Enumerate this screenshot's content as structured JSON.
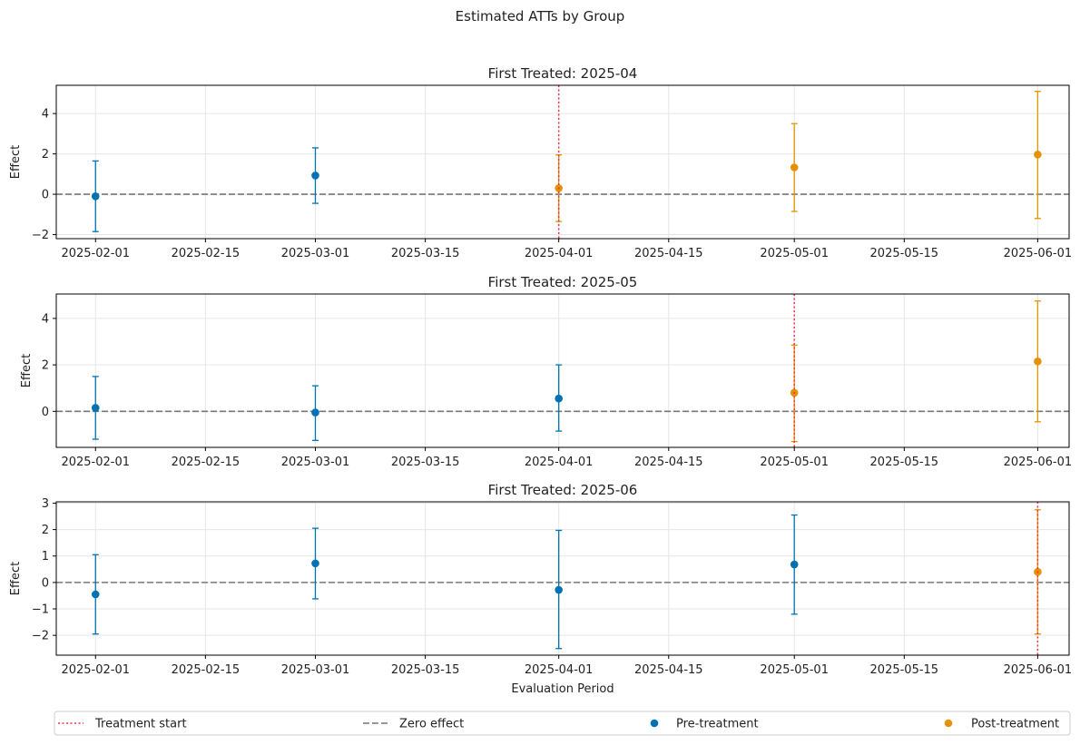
{
  "figure_title": "Estimated ATTs by Group",
  "colors": {
    "pre": "#0072b2",
    "post": "#e69100",
    "treatment_line": "#e8334b",
    "zero_line": "#777777",
    "grid": "#e6e6e6"
  },
  "legend": {
    "treatment_start": "Treatment start",
    "zero_effect": "Zero effect",
    "pre_treatment": "Pre-treatment",
    "post_treatment": "Post-treatment"
  },
  "chart_data": [
    {
      "type": "scatter",
      "title": "First Treated: 2025-04",
      "xlabel": "",
      "ylabel": "Effect",
      "xlim": [
        "2025-01-27",
        "2025-06-05"
      ],
      "ylim": [
        -2.2,
        5.4
      ],
      "yticks": [
        -2,
        0,
        2,
        4
      ],
      "treatment_start": "2025-04-01",
      "points": [
        {
          "x": "2025-02-01",
          "y": -0.1,
          "lo": -1.85,
          "hi": 1.65,
          "phase": "pre"
        },
        {
          "x": "2025-03-01",
          "y": 0.93,
          "lo": -0.45,
          "hi": 2.3,
          "phase": "pre"
        },
        {
          "x": "2025-04-01",
          "y": 0.3,
          "lo": -1.35,
          "hi": 1.95,
          "phase": "post"
        },
        {
          "x": "2025-05-01",
          "y": 1.33,
          "lo": -0.85,
          "hi": 3.5,
          "phase": "post"
        },
        {
          "x": "2025-06-01",
          "y": 1.97,
          "lo": -1.2,
          "hi": 5.1,
          "phase": "post"
        }
      ]
    },
    {
      "type": "scatter",
      "title": "First Treated: 2025-05",
      "xlabel": "",
      "ylabel": "Effect",
      "xlim": [
        "2025-01-27",
        "2025-06-05"
      ],
      "ylim": [
        -1.55,
        5.05
      ],
      "yticks": [
        0,
        2,
        4
      ],
      "treatment_start": "2025-05-01",
      "points": [
        {
          "x": "2025-02-01",
          "y": 0.15,
          "lo": -1.2,
          "hi": 1.5,
          "phase": "pre"
        },
        {
          "x": "2025-03-01",
          "y": -0.05,
          "lo": -1.25,
          "hi": 1.1,
          "phase": "pre"
        },
        {
          "x": "2025-04-01",
          "y": 0.55,
          "lo": -0.85,
          "hi": 2.0,
          "phase": "pre"
        },
        {
          "x": "2025-05-01",
          "y": 0.8,
          "lo": -1.3,
          "hi": 2.85,
          "phase": "post"
        },
        {
          "x": "2025-06-01",
          "y": 2.15,
          "lo": -0.45,
          "hi": 4.75,
          "phase": "post"
        }
      ]
    },
    {
      "type": "scatter",
      "title": "First Treated: 2025-06",
      "xlabel": "Evaluation Period",
      "ylabel": "Effect",
      "xlim": [
        "2025-01-27",
        "2025-06-05"
      ],
      "ylim": [
        -2.75,
        3.05
      ],
      "yticks": [
        -2,
        -1,
        0,
        1,
        2,
        3
      ],
      "treatment_start": "2025-06-01",
      "points": [
        {
          "x": "2025-02-01",
          "y": -0.45,
          "lo": -1.95,
          "hi": 1.05,
          "phase": "pre"
        },
        {
          "x": "2025-03-01",
          "y": 0.72,
          "lo": -0.62,
          "hi": 2.05,
          "phase": "pre"
        },
        {
          "x": "2025-04-01",
          "y": -0.28,
          "lo": -2.5,
          "hi": 1.97,
          "phase": "pre"
        },
        {
          "x": "2025-05-01",
          "y": 0.68,
          "lo": -1.2,
          "hi": 2.55,
          "phase": "pre"
        },
        {
          "x": "2025-06-01",
          "y": 0.4,
          "lo": -1.95,
          "hi": 2.75,
          "phase": "post"
        }
      ]
    }
  ],
  "x_ticks": [
    "2025-02-01",
    "2025-02-15",
    "2025-03-01",
    "2025-03-15",
    "2025-04-01",
    "2025-04-15",
    "2025-05-01",
    "2025-05-15",
    "2025-06-01"
  ]
}
